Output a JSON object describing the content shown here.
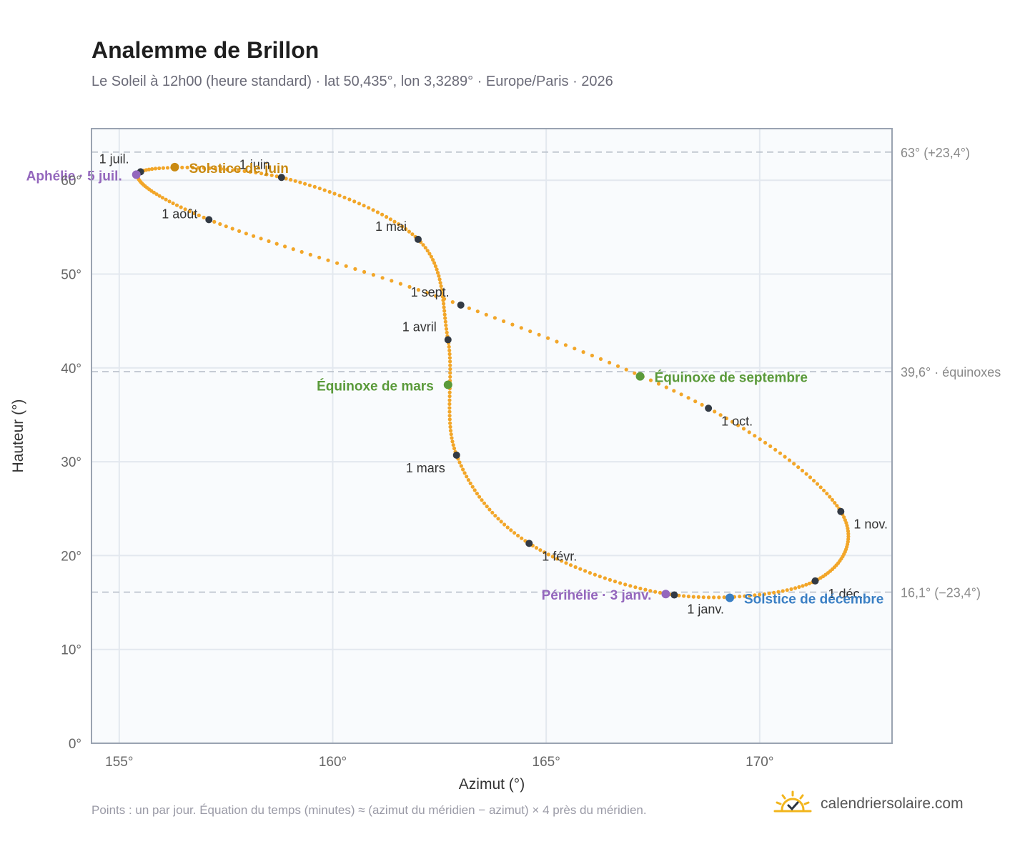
{
  "header": {
    "title": "Analemme de Brillon",
    "subtitle": "Le Soleil à 12h00 (heure standard) · lat 50,435°, lon 3,3289° · Europe/Paris · 2026"
  },
  "footer": {
    "note": "Points : un par jour. Équation du temps (minutes) ≈ (azimut du méridien − azimut) × 4 près du méridien.",
    "brand": "calendriersolaire.com",
    "brand_icon": "sun-calendar-icon"
  },
  "colors": {
    "curve": "#f2a629",
    "month_dot": "#333a44",
    "grid": "#e3e8ef",
    "plot_bg": "#f9fbfd",
    "frame": "#9aa3b1",
    "ref_line": "#b8bfc9",
    "summer_solstice": "#c98a12",
    "winter_solstice": "#3a7fc4",
    "equinox": "#5a9a3a",
    "apsis": "#9467bd"
  },
  "chart_data": {
    "type": "scatter",
    "xlabel": "Azimut (°)",
    "ylabel": "Hauteur (°)",
    "xlim": [
      154.35,
      173.1
    ],
    "ylim": [
      0,
      65.5
    ],
    "xticks": [
      {
        "value": 155,
        "label": "155°"
      },
      {
        "value": 160,
        "label": "160°"
      },
      {
        "value": 165,
        "label": "165°"
      },
      {
        "value": 170,
        "label": "170°"
      }
    ],
    "yticks": [
      {
        "value": 0,
        "label": "0°"
      },
      {
        "value": 10,
        "label": "10°"
      },
      {
        "value": 20,
        "label": "20°"
      },
      {
        "value": 30,
        "label": "30°"
      },
      {
        "value": 40,
        "label": "40°"
      },
      {
        "value": 50,
        "label": "50°"
      },
      {
        "value": 60,
        "label": "60°"
      }
    ],
    "grid": true,
    "reference_lines": [
      {
        "y": 63.0,
        "label": "63° (+23,4°)"
      },
      {
        "y": 39.6,
        "label": "39,6° · équinoxes"
      },
      {
        "y": 16.1,
        "label": "16,1° (−23,4°)"
      }
    ],
    "series": [
      {
        "points_per_day": 1,
        "months": [
          {
            "label": "1 janv.",
            "az": 168.0,
            "alt": 15.8
          },
          {
            "label": "1 févr.",
            "az": 164.6,
            "alt": 21.3
          },
          {
            "label": "1 mars",
            "az": 162.9,
            "alt": 30.7
          },
          {
            "label": "1 avril",
            "az": 162.7,
            "alt": 43.0
          },
          {
            "label": "1 mai",
            "az": 162.0,
            "alt": 53.7
          },
          {
            "label": "1 juin",
            "az": 158.8,
            "alt": 60.3
          },
          {
            "label": "1 juil.",
            "az": 155.5,
            "alt": 60.9
          },
          {
            "label": "1 août",
            "az": 157.1,
            "alt": 55.8
          },
          {
            "label": "1 sept.",
            "az": 163.0,
            "alt": 46.7
          },
          {
            "label": "1 oct.",
            "az": 168.8,
            "alt": 35.7
          },
          {
            "label": "1 nov.",
            "az": 171.9,
            "alt": 24.7
          },
          {
            "label": "1 déc.",
            "az": 171.3,
            "alt": 17.3
          }
        ]
      }
    ],
    "events": [
      {
        "label": "Solstice de juin",
        "az": 156.3,
        "alt": 61.4,
        "color_key": "summer_solstice"
      },
      {
        "label": "Solstice de décembre",
        "az": 169.3,
        "alt": 15.5,
        "color_key": "winter_solstice"
      },
      {
        "label": "Équinoxe de mars",
        "az": 162.7,
        "alt": 38.2,
        "color_key": "equinox"
      },
      {
        "label": "Équinoxe de septembre",
        "az": 167.2,
        "alt": 39.1,
        "color_key": "equinox"
      },
      {
        "label": "Aphélie · 5 juil.",
        "az": 155.4,
        "alt": 60.6,
        "color_key": "apsis"
      },
      {
        "label": "Périhélie · 3 janv.",
        "az": 167.8,
        "alt": 15.9,
        "color_key": "apsis"
      }
    ]
  }
}
